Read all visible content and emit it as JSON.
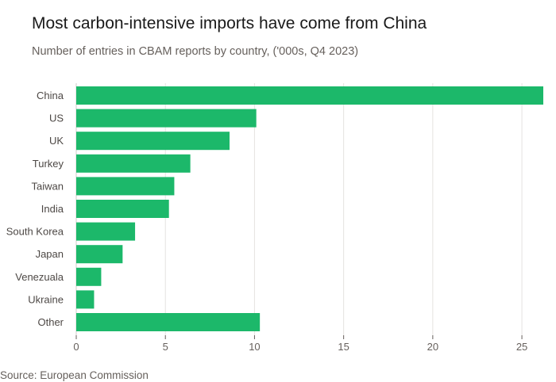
{
  "title": "Most carbon-intensive imports have come from China",
  "subtitle": "Number of entries in CBAM reports by country, ('000s, Q4 2023)",
  "source": "Source: European Commission",
  "colors": {
    "bar": "#1cb86a",
    "grid": "#e5e3e0",
    "axis": "#66605c"
  },
  "chart_data": {
    "type": "bar",
    "orientation": "horizontal",
    "categories": [
      "China",
      "US",
      "UK",
      "Turkey",
      "Taiwan",
      "India",
      "South Korea",
      "Japan",
      "Venezuala",
      "Ukraine",
      "Other"
    ],
    "values": [
      27.5,
      10.1,
      8.6,
      6.4,
      5.5,
      5.2,
      3.3,
      2.6,
      1.4,
      1.0,
      10.3
    ],
    "xlim": [
      0,
      26.2
    ],
    "xticks": [
      0,
      5,
      10,
      15,
      20,
      25
    ],
    "xlabel": "",
    "ylabel": "",
    "grid": true,
    "legend": "none"
  }
}
